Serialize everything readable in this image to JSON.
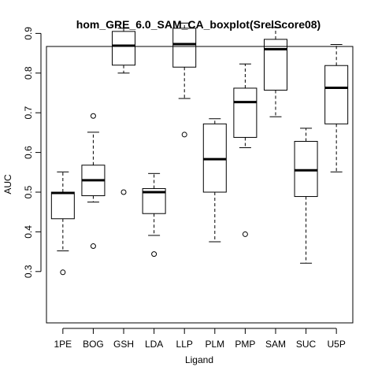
{
  "chart_data": {
    "type": "boxplot",
    "title": "hom_GRE_6.0_SAM_CA_boxplot(SrelScore08)",
    "xlabel": "Ligand",
    "ylabel": "AUC",
    "ylim": [
      0.28,
      0.95
    ],
    "yticks": [
      0.3,
      0.4,
      0.5,
      0.6,
      0.7,
      0.8,
      0.9
    ],
    "categories": [
      "1PE",
      "BOG",
      "GSH",
      "LDA",
      "LLP",
      "PLM",
      "PMP",
      "SAM",
      "SUC",
      "U5P"
    ],
    "boxes": [
      {
        "name": "1PE",
        "whisker_low": 0.352,
        "q1": 0.433,
        "median": 0.498,
        "q3": 0.5,
        "whisker_high": 0.551,
        "outliers": [
          0.298
        ]
      },
      {
        "name": "BOG",
        "whisker_low": 0.475,
        "q1": 0.491,
        "median": 0.53,
        "q3": 0.568,
        "whisker_high": 0.651,
        "outliers": [
          0.692,
          0.364
        ]
      },
      {
        "name": "GSH",
        "whisker_low": 0.8,
        "q1": 0.82,
        "median": 0.869,
        "q3": 0.905,
        "whisker_high": 0.913,
        "outliers": [
          0.5
        ]
      },
      {
        "name": "LDA",
        "whisker_low": 0.391,
        "q1": 0.446,
        "median": 0.5,
        "q3": 0.509,
        "whisker_high": 0.547,
        "outliers": [
          0.344
        ]
      },
      {
        "name": "LLP",
        "whisker_low": 0.736,
        "q1": 0.815,
        "median": 0.873,
        "q3": 0.913,
        "whisker_high": 0.926,
        "outliers": [
          0.645
        ]
      },
      {
        "name": "PLM",
        "whisker_low": 0.375,
        "q1": 0.5,
        "median": 0.583,
        "q3": 0.672,
        "whisker_high": 0.685,
        "outliers": []
      },
      {
        "name": "PMP",
        "whisker_low": 0.612,
        "q1": 0.638,
        "median": 0.727,
        "q3": 0.762,
        "whisker_high": 0.823,
        "outliers": [
          0.394
        ]
      },
      {
        "name": "SAM",
        "whisker_low": 0.69,
        "q1": 0.757,
        "median": 0.86,
        "q3": 0.885,
        "whisker_high": 0.915,
        "outliers": []
      },
      {
        "name": "SUC",
        "whisker_low": 0.321,
        "q1": 0.489,
        "median": 0.555,
        "q3": 0.628,
        "whisker_high": 0.661,
        "outliers": []
      },
      {
        "name": "U5P",
        "whisker_low": 0.551,
        "q1": 0.672,
        "median": 0.763,
        "q3": 0.819,
        "whisker_high": 0.872,
        "outliers": []
      }
    ],
    "grid": false,
    "legend": "none"
  }
}
